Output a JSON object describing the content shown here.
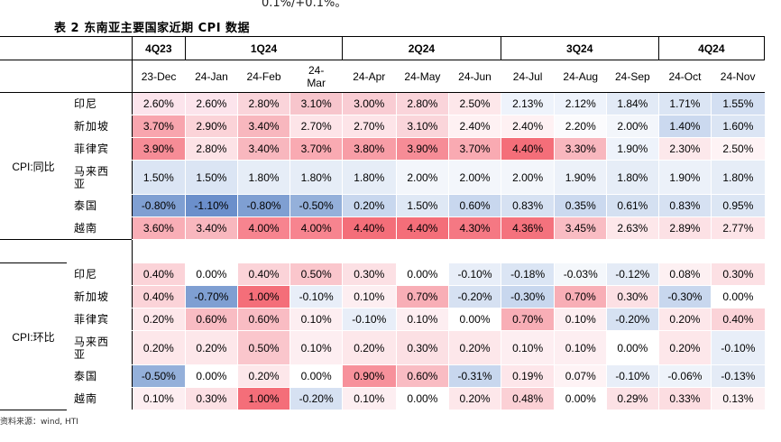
{
  "top_fragment": "0.1%/+0.1%。",
  "title": "表 2 东南亚主要国家近期 CPI 数据",
  "quarters": [
    {
      "label": "4Q23",
      "span": 1
    },
    {
      "label": "1Q24",
      "span": 3
    },
    {
      "label": "2Q24",
      "span": 3
    },
    {
      "label": "3Q24",
      "span": 3
    },
    {
      "label": "4Q24",
      "span": 2
    }
  ],
  "months": [
    "23-Dec",
    "24-Jan",
    "24-Feb",
    "24-\nMar",
    "24-Apr",
    "24-May",
    "24-Jun",
    "24-Jul",
    "24-Aug",
    "24-Sep",
    "24-Oct",
    "24-Nov"
  ],
  "sections": [
    {
      "label": "CPI:同比",
      "rows": [
        {
          "country": "印尼",
          "values": [
            "2.60%",
            "2.60%",
            "2.80%",
            "3.10%",
            "3.00%",
            "2.80%",
            "2.50%",
            "2.13%",
            "2.12%",
            "1.84%",
            "1.71%",
            "1.55%"
          ]
        },
        {
          "country": "新加坡",
          "values": [
            "3.70%",
            "2.90%",
            "3.40%",
            "2.70%",
            "2.70%",
            "3.10%",
            "2.40%",
            "2.40%",
            "2.20%",
            "2.00%",
            "1.40%",
            "1.60%"
          ]
        },
        {
          "country": "菲律宾",
          "values": [
            "3.90%",
            "2.80%",
            "3.40%",
            "3.70%",
            "3.80%",
            "3.90%",
            "3.70%",
            "4.40%",
            "3.30%",
            "1.90%",
            "2.30%",
            "2.50%"
          ]
        },
        {
          "country": "马来西\n亚",
          "values": [
            "1.50%",
            "1.50%",
            "1.80%",
            "1.80%",
            "1.80%",
            "2.00%",
            "2.00%",
            "2.00%",
            "1.90%",
            "1.80%",
            "1.90%",
            "1.80%"
          ]
        },
        {
          "country": "泰国",
          "values": [
            "-0.80%",
            "-1.10%",
            "-0.80%",
            "-0.50%",
            "0.20%",
            "1.50%",
            "0.60%",
            "0.83%",
            "0.35%",
            "0.61%",
            "0.83%",
            "0.95%"
          ]
        },
        {
          "country": "越南",
          "values": [
            "3.60%",
            "3.40%",
            "4.00%",
            "4.00%",
            "4.40%",
            "4.40%",
            "4.30%",
            "4.36%",
            "3.45%",
            "2.63%",
            "2.89%",
            "2.77%"
          ]
        }
      ],
      "colors": [
        [
          "#fce4ec",
          "#fce4ec",
          "#fad4da",
          "#f7c5cc",
          "#f9ccd3",
          "#fad4da",
          "#fde7ea",
          "#eef3fb",
          "#eef3fb",
          "#e2eaf6",
          "#dbe5f4",
          "#d3dff2"
        ],
        [
          "#f8a5ae",
          "#fbd3d8",
          "#f8b7be",
          "#fde4e8",
          "#fde4e8",
          "#fad5da",
          "#fef1f3",
          "#fef1f3",
          "#fbfbfd",
          "#f3f6fb",
          "#cbd9ef",
          "#dbe5f4"
        ],
        [
          "#f68c96",
          "#fce2e6",
          "#f8b7be",
          "#f9aab2",
          "#f89da6",
          "#f68c96",
          "#f9aab2",
          "#f46e79",
          "#f8b7be",
          "#eef3fb",
          "#fce8eb",
          "#fef3f5"
        ],
        [
          "#dbe5f4",
          "#dbe5f4",
          "#e6edf7",
          "#e6edf7",
          "#e6edf7",
          "#f3f6fb",
          "#f3f6fb",
          "#f3f6fb",
          "#ecf1f9",
          "#e6edf7",
          "#ecf1f9",
          "#e6edf7"
        ],
        [
          "#7f9fd2",
          "#6b8fcb",
          "#7f9fd2",
          "#94b0da",
          "#c8d7ee",
          "#dfe8f5",
          "#c8d7ee",
          "#d6e1f2",
          "#cbd9ef",
          "#d4e0f1",
          "#d6e1f2",
          "#dce6f4"
        ],
        [
          "#f9aeb6",
          "#f8b7be",
          "#f7848f",
          "#f7848f",
          "#f46e79",
          "#f46e79",
          "#f57883",
          "#f4727d",
          "#f9bcc3",
          "#fde7ea",
          "#fce1e5",
          "#fde4e8"
        ]
      ]
    },
    {
      "label": "CPI:环比",
      "rows": [
        {
          "country": "印尼",
          "values": [
            "0.40%",
            "0.00%",
            "0.40%",
            "0.50%",
            "0.30%",
            "0.00%",
            "-0.10%",
            "-0.18%",
            "-0.03%",
            "-0.12%",
            "0.08%",
            "0.30%"
          ]
        },
        {
          "country": "新加坡",
          "values": [
            "0.40%",
            "-0.70%",
            "1.00%",
            "-0.10%",
            "0.10%",
            "0.70%",
            "-0.20%",
            "-0.30%",
            "0.70%",
            "0.30%",
            "-0.30%",
            "0.00%"
          ]
        },
        {
          "country": "菲律宾",
          "values": [
            "0.20%",
            "0.60%",
            "0.60%",
            "0.10%",
            "-0.10%",
            "0.10%",
            "0.00%",
            "0.70%",
            "0.10%",
            "-0.20%",
            "0.20%",
            "0.40%"
          ]
        },
        {
          "country": "马来西\n亚",
          "values": [
            "0.20%",
            "0.20%",
            "0.50%",
            "0.10%",
            "0.20%",
            "0.30%",
            "0.20%",
            "0.10%",
            "0.10%",
            "0.00%",
            "0.20%",
            "-0.10%"
          ]
        },
        {
          "country": "泰国",
          "values": [
            "-0.50%",
            "0.00%",
            "0.20%",
            "0.00%",
            "0.90%",
            "0.60%",
            "-0.31%",
            "0.19%",
            "0.07%",
            "-0.10%",
            "-0.06%",
            "-0.13%"
          ]
        },
        {
          "country": "越南",
          "values": [
            "0.10%",
            "0.30%",
            "1.00%",
            "-0.20%",
            "0.10%",
            "0.00%",
            "0.20%",
            "0.48%",
            "0.00%",
            "0.29%",
            "0.33%",
            "0.13%"
          ]
        }
      ],
      "colors": [
        [
          "#fbd3d8",
          "#ffffff",
          "#fbd3d8",
          "#fac6cc",
          "#fce0e4",
          "#ffffff",
          "#e8eef8",
          "#dbe5f4",
          "#f4f7fb",
          "#e4ebf6",
          "#fdf0f2",
          "#fce0e4"
        ],
        [
          "#fbd3d8",
          "#7f9fd2",
          "#f46e79",
          "#e8eef8",
          "#fdeef1",
          "#f8aeb6",
          "#d6e1f2",
          "#c8d7ee",
          "#f8aeb6",
          "#fce0e4",
          "#c8d7ee",
          "#ffffff"
        ],
        [
          "#fde7ea",
          "#f9bcc3",
          "#f9bcc3",
          "#fdeef1",
          "#e8eef8",
          "#fdeef1",
          "#ffffff",
          "#f8aeb6",
          "#fdeef1",
          "#d6e1f2",
          "#fde7ea",
          "#fbd3d8"
        ],
        [
          "#fde7ea",
          "#fde7ea",
          "#fac6cc",
          "#fdeef1",
          "#fde7ea",
          "#fce0e4",
          "#fde7ea",
          "#fdeef1",
          "#fdeef1",
          "#ffffff",
          "#fde7ea",
          "#e8eef8"
        ],
        [
          "#94b0da",
          "#ffffff",
          "#fde7ea",
          "#ffffff",
          "#f7919b",
          "#f9bcc3",
          "#c8d7ee",
          "#fde6ea",
          "#fef3f5",
          "#e8eef8",
          "#eef3fa",
          "#e4ebf6"
        ],
        [
          "#fdeef1",
          "#fce0e4",
          "#f46e79",
          "#d6e1f2",
          "#fdeef1",
          "#ffffff",
          "#fde7ea",
          "#fbd0d5",
          "#ffffff",
          "#fce1e5",
          "#fcdde1",
          "#fdf0f2"
        ]
      ]
    }
  ],
  "source": "资料来源：wind, HTI"
}
